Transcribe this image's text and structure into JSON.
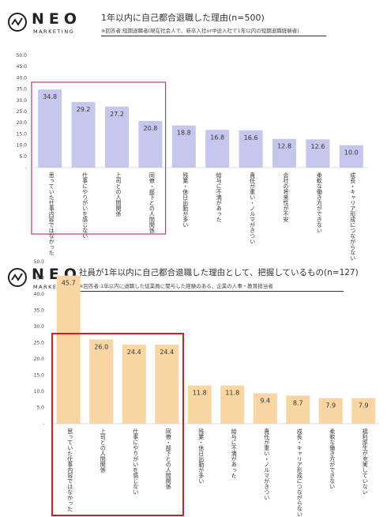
{
  "brand": {
    "name": "NEO",
    "sub": "MARKETING"
  },
  "charts": [
    {
      "title": "1年以内に自己都合退職した理由(n=500)",
      "note": "※回答者:短期退職者(現在社会人で、新卒入社or中途入社で1年以内の短期退職経験者)"
    },
    {
      "title": "社員が1年以内に自己都合退職した理由として、把握しているもの(n=127)",
      "note": "※回答者:1年以内に退職した従業員に関与した経験のある、企業の人事・教育担当者"
    }
  ],
  "chart_data": [
    {
      "type": "bar",
      "title": "1年以内に自己都合退職した理由(n=500)",
      "categories": [
        "思っていた仕事内容ではなかった",
        "仕事にやりがいを感じない",
        "上司との人間関係",
        "同僚・部下との人間関係",
        "残業・休日出勤が多い",
        "給与に不満があった",
        "責任が重い・ノルマがきつい",
        "会社の将来性が不安",
        "柔軟な働き方ができない",
        "成長・キャリア形成につながらない"
      ],
      "values": [
        34.8,
        29.2,
        27.2,
        20.8,
        18.8,
        16.8,
        16.6,
        12.8,
        12.6,
        10.0
      ],
      "yticks": [
        "50.0",
        "45.0",
        "40.0",
        "35.0",
        "30.0",
        "25.0",
        "20.0",
        "15.0",
        "10.0",
        "5.0",
        "-"
      ],
      "ylim": [
        0,
        50
      ],
      "bar_color": "#c5c8ec",
      "highlight_color": "#c8385a",
      "highlight_count": 4
    },
    {
      "type": "bar",
      "title": "社員が1年以内に自己都合退職した理由として、把握しているもの(n=127)",
      "categories": [
        "思っていた仕事内容ではなかった",
        "上司との人間関係",
        "仕事にやりがいを感じない",
        "同僚・部下との人間関係",
        "残業・休日出勤が多い",
        "給与に不満があった",
        "責任が重い・ノルマがきつい",
        "成長・キャリア形成につながらない",
        "柔軟な働き方ができない",
        "福利厚生が充実していない"
      ],
      "values": [
        45.7,
        26.0,
        24.4,
        24.4,
        11.8,
        11.8,
        9.4,
        8.7,
        7.9,
        7.9
      ],
      "yticks": [
        "50.0",
        "45.0",
        "40.0",
        "35.0",
        "30.0",
        "25.0",
        "20.0",
        "15.0",
        "10.0",
        "5.0",
        "-"
      ],
      "ylim": [
        0,
        50
      ],
      "bar_color": "#f8d6a4",
      "highlight_color": "#d42020",
      "highlight_count": 4
    }
  ]
}
